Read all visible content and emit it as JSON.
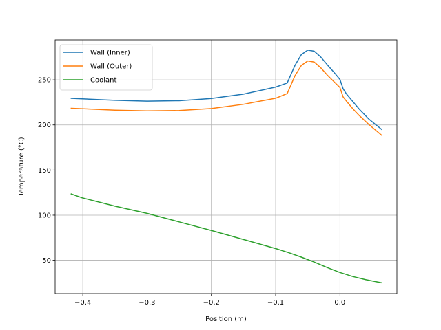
{
  "chart_data": {
    "type": "line",
    "title": "",
    "xlabel": "Position (m)",
    "ylabel": "Temperature (°C)",
    "xlim": [
      -0.443,
      0.0886
    ],
    "ylim": [
      13.1,
      294.3
    ],
    "xticks": [
      -0.4,
      -0.3,
      -0.2,
      -0.1,
      0.0
    ],
    "xtick_labels": [
      "−0.4",
      "−0.3",
      "−0.2",
      "−0.1",
      "0.0"
    ],
    "yticks": [
      50,
      100,
      150,
      200,
      250
    ],
    "ytick_labels": [
      "50",
      "100",
      "150",
      "200",
      "250"
    ],
    "grid": true,
    "legend_position": "upper-left",
    "series": [
      {
        "name": "Wall (Inner)",
        "color": "#1f77b4",
        "x": [
          -0.418,
          -0.35,
          -0.3,
          -0.25,
          -0.2,
          -0.15,
          -0.1,
          -0.082,
          -0.07,
          -0.06,
          -0.05,
          -0.04,
          -0.03,
          -0.02,
          -0.01,
          0.0,
          0.005,
          0.01,
          0.02,
          0.03,
          0.045,
          0.065
        ],
        "y": [
          229.5,
          227.3,
          226.4,
          226.9,
          229.3,
          234.2,
          242.0,
          246.5,
          266.0,
          278.0,
          283.0,
          281.7,
          275.5,
          267.0,
          259.0,
          250.5,
          240.0,
          234.5,
          226.0,
          217.5,
          206.5,
          195.0
        ]
      },
      {
        "name": "Wall (Outer)",
        "color": "#ff7f0e",
        "x": [
          -0.418,
          -0.35,
          -0.3,
          -0.25,
          -0.2,
          -0.15,
          -0.1,
          -0.082,
          -0.07,
          -0.06,
          -0.05,
          -0.04,
          -0.03,
          -0.02,
          -0.01,
          0.0,
          0.005,
          0.01,
          0.02,
          0.03,
          0.045,
          0.065
        ],
        "y": [
          218.5,
          216.4,
          215.6,
          216.0,
          218.2,
          222.9,
          229.6,
          234.8,
          254.5,
          266.0,
          271.0,
          269.7,
          263.5,
          255.5,
          248.5,
          241.5,
          231.0,
          226.5,
          218.0,
          210.5,
          200.5,
          188.5
        ]
      },
      {
        "name": "Coolant",
        "color": "#2ca02c",
        "x": [
          -0.418,
          -0.4,
          -0.35,
          -0.3,
          -0.25,
          -0.2,
          -0.15,
          -0.1,
          -0.08,
          -0.06,
          -0.04,
          -0.02,
          0.0,
          0.02,
          0.04,
          0.065
        ],
        "y": [
          123.5,
          119.0,
          110.0,
          102.0,
          92.5,
          83.0,
          73.0,
          63.0,
          58.5,
          53.5,
          48.0,
          42.0,
          36.5,
          32.0,
          28.5,
          25.0
        ]
      }
    ]
  }
}
